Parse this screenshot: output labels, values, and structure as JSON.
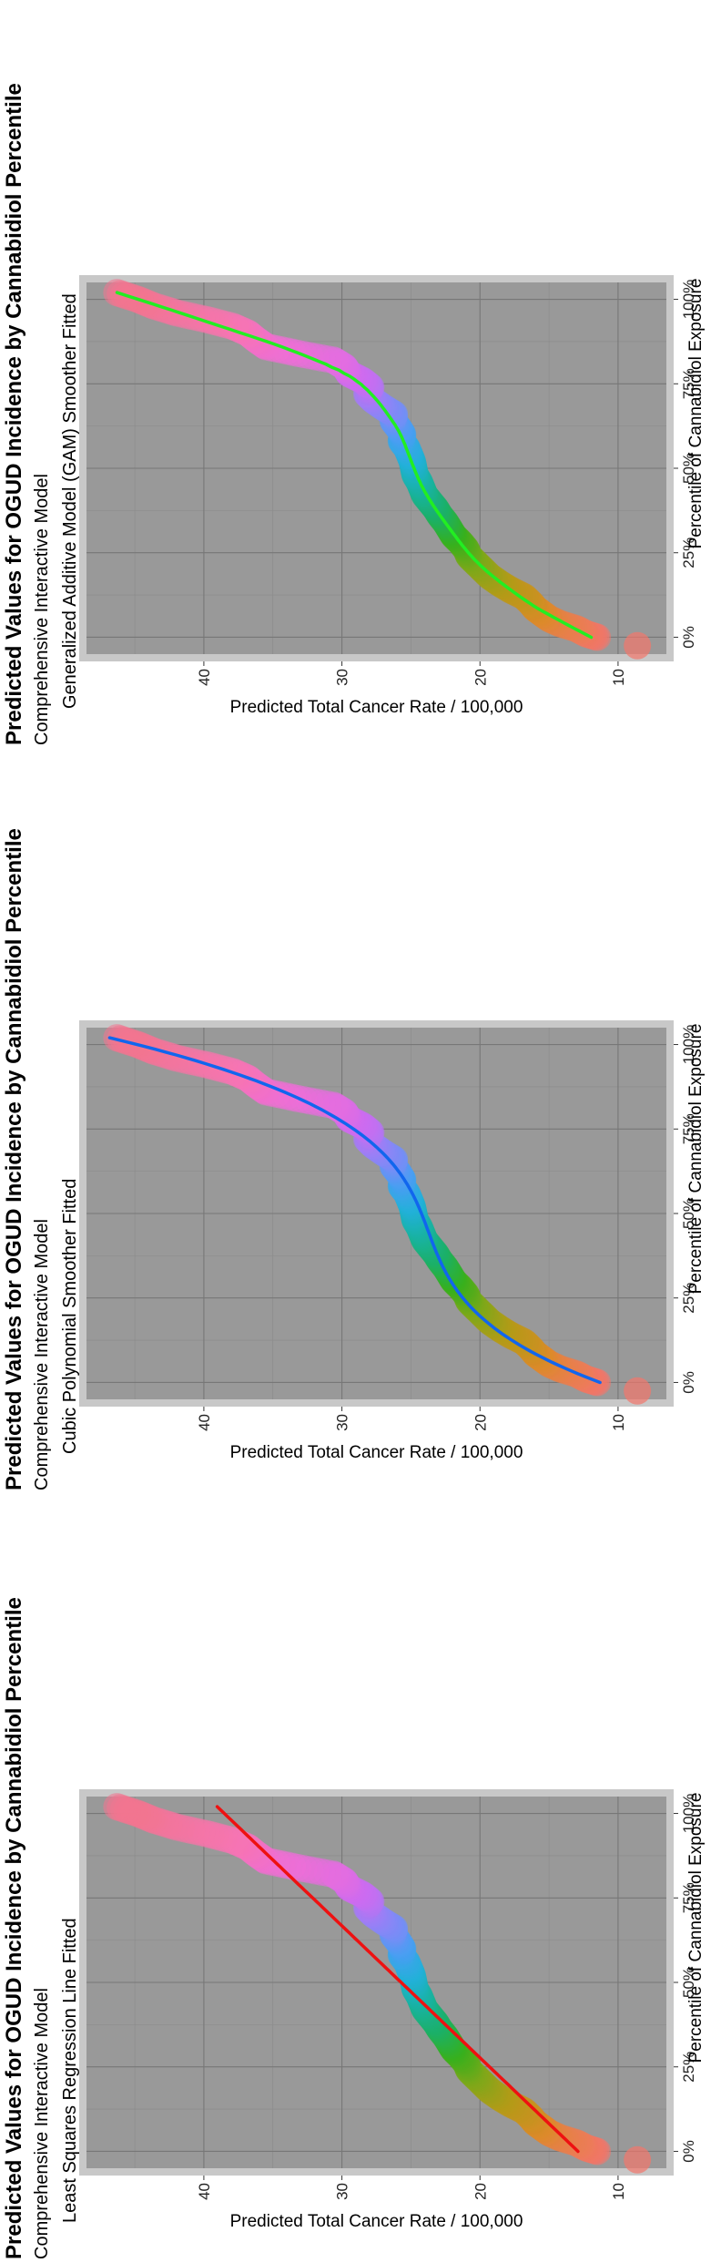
{
  "chart_data": [
    {
      "type": "scatter",
      "title": "Predicted Values for OGUD Incidence by Cannabidiol Percentile",
      "subtitle_line1": "Comprehensive Interactive Model",
      "subtitle_line2": "Least Squares Regression Line Fitted",
      "xlabel": "Percentile of Cannabidiol Exposure",
      "ylabel": "Predicted Total Cancer Rate / 100,000",
      "xticks": [
        "0%",
        "25%",
        "50%",
        "75%",
        "100%"
      ],
      "yticks": [
        "10",
        "20",
        "30",
        "40"
      ],
      "xlim": [
        -0.05,
        1.05
      ],
      "ylim": [
        6.5,
        48.5
      ],
      "smoother": "linear",
      "smoother_color": "#ee1111",
      "panel_bg": "#999999",
      "grid": true
    },
    {
      "type": "scatter",
      "title": "Predicted Values for OGUD Incidence by Cannabidiol Percentile",
      "subtitle_line1": "Comprehensive Interactive Model",
      "subtitle_line2": "Cubic Polynomial Smoother Fitted",
      "xlabel": "Percentile of Cannabidiol Exposure",
      "ylabel": "Predicted Total Cancer Rate / 100,000",
      "xticks": [
        "0%",
        "25%",
        "50%",
        "75%",
        "100%"
      ],
      "yticks": [
        "10",
        "20",
        "30",
        "40"
      ],
      "xlim": [
        -0.05,
        1.05
      ],
      "ylim": [
        6.5,
        48.5
      ],
      "smoother": "cubic",
      "smoother_color": "#1166ee",
      "panel_bg": "#999999",
      "grid": true
    },
    {
      "type": "scatter",
      "title": "Predicted Values for OGUD Incidence by Cannabidiol Percentile",
      "subtitle_line1": "Comprehensive Interactive Model",
      "subtitle_line2": "Generalized Additive Model (GAM) Smoother Fitted",
      "xlabel": "Percentile of Cannabidiol Exposure",
      "ylabel": "Predicted Total Cancer Rate / 100,000",
      "xticks": [
        "0%",
        "25%",
        "50%",
        "75%",
        "100%"
      ],
      "yticks": [
        "10",
        "20",
        "30",
        "40"
      ],
      "xlim": [
        -0.05,
        1.05
      ],
      "ylim": [
        6.5,
        48.5
      ],
      "smoother": "gam",
      "smoother_color": "#22ee22",
      "panel_bg": "#999999",
      "grid": true
    }
  ],
  "points": {
    "x": [
      0.0,
      0.01,
      0.025,
      0.04,
      0.055,
      0.07,
      0.085,
      0.1,
      0.12,
      0.14,
      0.16,
      0.18,
      0.2,
      0.22,
      0.24,
      0.26,
      0.28,
      0.3,
      0.32,
      0.34,
      0.36,
      0.38,
      0.4,
      0.42,
      0.44,
      0.46,
      0.48,
      0.5,
      0.52,
      0.54,
      0.56,
      0.58,
      0.6,
      0.62,
      0.64,
      0.66,
      0.68,
      0.7,
      0.72,
      0.74,
      0.76,
      0.78,
      0.8,
      0.82,
      0.84,
      0.86,
      0.88,
      0.9,
      0.92,
      0.94,
      0.96,
      0.98,
      1.0,
      1.02
    ],
    "y": [
      11.5,
      12.3,
      13.0,
      14.2,
      15.0,
      15.5,
      16.0,
      16.3,
      16.8,
      17.8,
      18.6,
      19.3,
      19.8,
      20.3,
      20.8,
      21.0,
      21.4,
      21.9,
      22.2,
      22.5,
      22.9,
      23.2,
      23.6,
      24.0,
      24.2,
      24.4,
      24.7,
      24.8,
      24.9,
      25.1,
      25.3,
      25.7,
      25.6,
      25.9,
      26.3,
      26.2,
      27.0,
      27.7,
      28.2,
      27.9,
      28.5,
      29.5,
      29.8,
      30.6,
      33.2,
      35.5,
      36.2,
      36.8,
      37.9,
      39.8,
      42.0,
      43.6,
      44.8,
      46.3
    ],
    "outlier": {
      "x": -0.025,
      "y": 8.6
    },
    "gradient_colors": [
      "#f2766b",
      "#dc8a2a",
      "#b69a18",
      "#7fa81a",
      "#37b01d",
      "#1cb168",
      "#19b2a2",
      "#22b1d8",
      "#4a9ef3",
      "#8f84f6",
      "#cc6cf0",
      "#ef6ed8",
      "#f674b2",
      "#f27590"
    ]
  }
}
